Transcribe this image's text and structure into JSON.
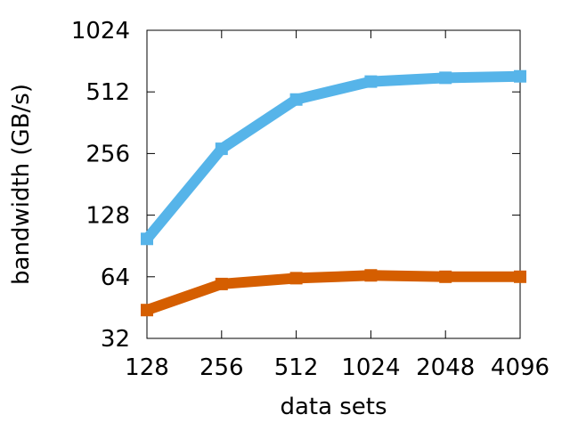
{
  "chart_data": {
    "type": "line",
    "title": "",
    "xlabel": "data sets",
    "ylabel": "bandwidth (GB/s)",
    "x_scale": "log2",
    "y_scale": "log2",
    "categories": [
      "128",
      "256",
      "512",
      "1024",
      "2048",
      "4096"
    ],
    "x": [
      128,
      256,
      512,
      1024,
      2048,
      4096
    ],
    "xlim": [
      128,
      4096
    ],
    "ylim": [
      32,
      1024
    ],
    "y_ticks": [
      32,
      64,
      128,
      256,
      512,
      1024
    ],
    "y_tick_labels": [
      "32",
      "64",
      "128",
      "256",
      "512",
      "1024"
    ],
    "grid": false,
    "legend": "none",
    "series": [
      {
        "color": "#56b4e9",
        "values": [
          98,
          270,
          470,
          575,
          600,
          610
        ]
      },
      {
        "color": "#d55e00",
        "values": [
          44,
          59,
          63,
          65,
          64,
          64
        ]
      }
    ]
  }
}
